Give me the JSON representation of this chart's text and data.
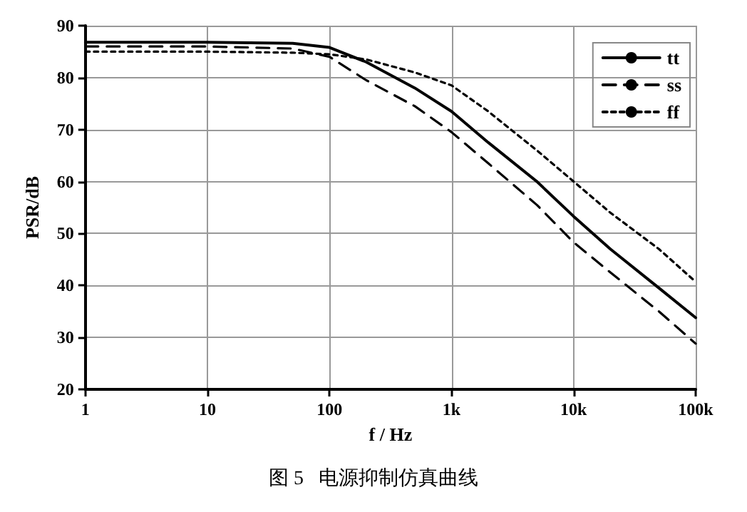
{
  "chart_data": {
    "type": "line",
    "xlabel": "f / Hz",
    "ylabel": "PSR/dB",
    "x": [
      1,
      10,
      50,
      100,
      200,
      500,
      1000,
      2000,
      5000,
      10000,
      20000,
      50000,
      100000
    ],
    "series": [
      {
        "name": "tt",
        "color": "#000000",
        "line_style": "solid",
        "values": [
          86.8,
          86.8,
          86.6,
          85.8,
          83,
          78,
          73.5,
          67.5,
          60,
          53.3,
          47,
          39.5,
          33.8
        ]
      },
      {
        "name": "ss",
        "color": "#000000",
        "line_style": "dashed",
        "values": [
          86,
          86,
          85.6,
          84,
          79.5,
          74.5,
          69.5,
          63.5,
          55.5,
          48.3,
          42.5,
          35,
          28.8
        ]
      },
      {
        "name": "ff",
        "color": "#000000",
        "line_style": "dotted",
        "values": [
          85,
          85,
          84.8,
          84.5,
          83.5,
          81,
          78.5,
          73.5,
          66,
          60,
          54,
          47,
          40.7
        ]
      }
    ],
    "log": "x",
    "xlim": [
      1,
      100000
    ],
    "xticks": [
      1,
      10,
      100,
      {
        "value": 1000,
        "label": "1k"
      },
      {
        "value": 10000,
        "label": "10k"
      },
      {
        "value": 100000,
        "label": "100k"
      }
    ],
    "ylim": [
      20,
      90
    ],
    "yticks": [
      20,
      30,
      40,
      50,
      60,
      70,
      80,
      90
    ],
    "grid": true,
    "legend": "top right",
    "marker": "none",
    "annotations": [
      "图 5   电源抑制仿真曲线"
    ]
  }
}
